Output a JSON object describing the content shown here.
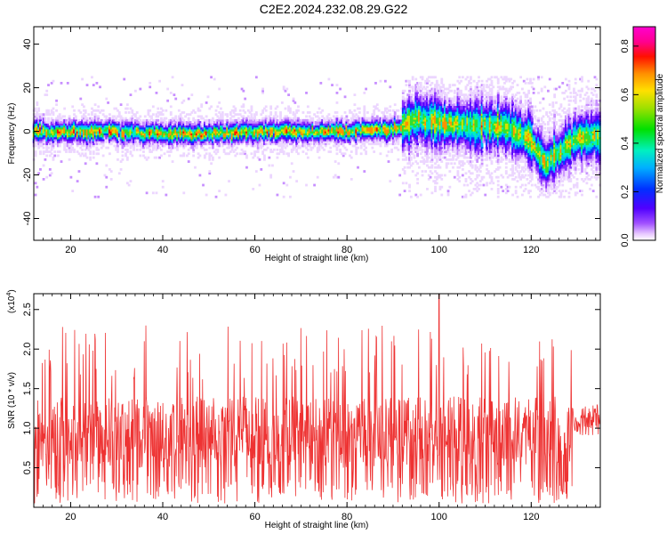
{
  "title": "C2E2.2024.232.08.29.G22",
  "chart_data": [
    {
      "type": "heatmap",
      "xlabel": "Height of straight line (km)",
      "ylabel": "Frequency (Hz)",
      "xlim": [
        12,
        135
      ],
      "ylim": [
        -50,
        48
      ],
      "xticks": [
        "20",
        "40",
        "60",
        "80",
        "100",
        "120"
      ],
      "yticks": [
        "-40",
        "-20",
        "0",
        "20",
        "40"
      ],
      "colorbar": {
        "label": "Normalized spectral amplitude",
        "range": [
          0,
          0.88
        ],
        "ticks": [
          "0.0",
          "0.2",
          "0.4",
          "0.6",
          "0.8"
        ]
      },
      "ridge": [
        {
          "x": 12,
          "y": 0
        },
        {
          "x": 20,
          "y": 0
        },
        {
          "x": 30,
          "y": 0
        },
        {
          "x": 40,
          "y": -1
        },
        {
          "x": 50,
          "y": -1
        },
        {
          "x": 60,
          "y": 0
        },
        {
          "x": 70,
          "y": 0
        },
        {
          "x": 80,
          "y": 0
        },
        {
          "x": 90,
          "y": 1
        },
        {
          "x": 95,
          "y": 6
        },
        {
          "x": 100,
          "y": 4
        },
        {
          "x": 105,
          "y": 3
        },
        {
          "x": 110,
          "y": 3
        },
        {
          "x": 115,
          "y": 2
        },
        {
          "x": 120,
          "y": -4
        },
        {
          "x": 123,
          "y": -15
        },
        {
          "x": 127,
          "y": -8
        },
        {
          "x": 130,
          "y": -3
        },
        {
          "x": 135,
          "y": -2
        }
      ]
    },
    {
      "type": "line",
      "xlabel": "Height of straight line (km)",
      "ylabel": "SNR (10 * v/v)",
      "exponent_label": "(x10",
      "exponent_power": "4",
      "exponent_close": ")",
      "xlim": [
        12,
        135
      ],
      "ylim": [
        0,
        2.7
      ],
      "xticks": [
        "20",
        "40",
        "60",
        "80",
        "100",
        "120"
      ],
      "yticks": [
        "0.5",
        "1.0",
        "1.5",
        "2.0",
        "2.5"
      ],
      "series": [
        {
          "color": "#ee3333",
          "min": 0.05,
          "mean": 1.0,
          "max": 2.7,
          "start": 1.1,
          "end": 1.1,
          "peak": {
            "x": 100,
            "y": 2.7
          }
        }
      ]
    }
  ]
}
